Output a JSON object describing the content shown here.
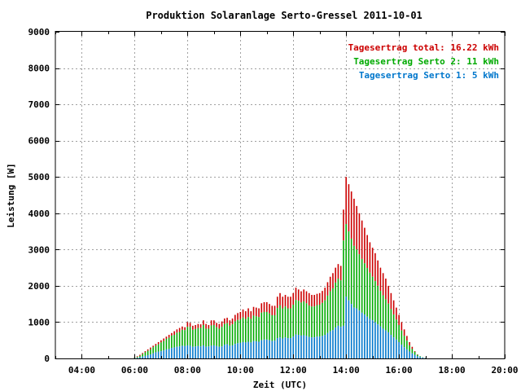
{
  "chart_data": {
    "type": "bar",
    "title": "Produktion Solaranlage Serto-Gressel 2011-10-01",
    "xlabel": "Zeit (UTC)",
    "ylabel": "Leistung [W]",
    "xlim": [
      3.0,
      20.0
    ],
    "ylim": [
      0,
      9000
    ],
    "x_ticks": [
      4,
      6,
      8,
      10,
      12,
      14,
      16,
      18,
      20
    ],
    "x_tick_labels": [
      "04:00",
      "06:00",
      "08:00",
      "10:00",
      "12:00",
      "14:00",
      "16:00",
      "18:00",
      "20:00"
    ],
    "y_ticks": [
      0,
      1000,
      2000,
      3000,
      4000,
      5000,
      6000,
      7000,
      8000,
      9000
    ],
    "y_tick_labels": [
      "0",
      "1000",
      "2000",
      "3000",
      "4000",
      "5000",
      "6000",
      "7000",
      "8000",
      "9000"
    ],
    "grid": true,
    "stacked": true,
    "legend_position": "top-right",
    "legend": [
      {
        "label": "Tagesertrag total: 16.22 kWh",
        "color": "#cc0000"
      },
      {
        "label": "Tagesertrag Serto 2: 11 kWh",
        "color": "#00aa00"
      },
      {
        "label": "Tagesertrag Serto 1: 5 kWh",
        "color": "#0077cc"
      }
    ],
    "series_colors": {
      "serto1": "#0077cc",
      "serto2": "#00aa00",
      "total": "#cc0000"
    },
    "x": [
      6.0,
      6.1,
      6.2,
      6.3,
      6.4,
      6.5,
      6.6,
      6.7,
      6.8,
      6.9,
      7.0,
      7.1,
      7.2,
      7.3,
      7.4,
      7.5,
      7.6,
      7.7,
      7.8,
      7.9,
      8.0,
      8.1,
      8.2,
      8.3,
      8.4,
      8.5,
      8.6,
      8.7,
      8.8,
      8.9,
      9.0,
      9.1,
      9.2,
      9.3,
      9.4,
      9.5,
      9.6,
      9.7,
      9.8,
      9.9,
      10.0,
      10.1,
      10.2,
      10.3,
      10.4,
      10.5,
      10.6,
      10.7,
      10.8,
      10.9,
      11.0,
      11.1,
      11.2,
      11.3,
      11.4,
      11.5,
      11.6,
      11.7,
      11.8,
      11.9,
      12.0,
      12.1,
      12.2,
      12.3,
      12.4,
      12.5,
      12.6,
      12.7,
      12.8,
      12.9,
      13.0,
      13.1,
      13.2,
      13.3,
      13.4,
      13.5,
      13.6,
      13.7,
      13.8,
      13.9,
      14.0,
      14.1,
      14.2,
      14.3,
      14.4,
      14.5,
      14.6,
      14.7,
      14.8,
      14.9,
      15.0,
      15.1,
      15.2,
      15.3,
      15.4,
      15.5,
      15.6,
      15.7,
      15.8,
      15.9,
      16.0,
      16.1,
      16.2,
      16.3,
      16.4,
      16.5,
      16.6,
      16.7,
      16.8,
      16.9,
      17.0
    ],
    "serto1": [
      10,
      15,
      30,
      50,
      70,
      90,
      110,
      140,
      170,
      190,
      200,
      220,
      250,
      260,
      290,
      300,
      320,
      330,
      350,
      340,
      360,
      350,
      320,
      330,
      340,
      330,
      360,
      320,
      330,
      350,
      360,
      340,
      320,
      330,
      380,
      390,
      350,
      360,
      400,
      420,
      430,
      450,
      440,
      460,
      440,
      480,
      470,
      460,
      500,
      520,
      520,
      500,
      480,
      490,
      560,
      580,
      550,
      580,
      560,
      560,
      600,
      660,
      650,
      630,
      640,
      620,
      590,
      580,
      580,
      600,
      600,
      620,
      650,
      700,
      750,
      780,
      850,
      900,
      870,
      900,
      1700,
      1600,
      1500,
      1400,
      1380,
      1320,
      1260,
      1210,
      1150,
      1090,
      1050,
      1000,
      940,
      880,
      820,
      770,
      720,
      650,
      580,
      520,
      450,
      380,
      310,
      250,
      190,
      140,
      100,
      60,
      40,
      20,
      10
    ],
    "serto2": [
      20,
      25,
      40,
      70,
      100,
      120,
      140,
      170,
      180,
      200,
      240,
      260,
      290,
      310,
      340,
      350,
      390,
      400,
      440,
      440,
      510,
      520,
      470,
      480,
      500,
      510,
      560,
      500,
      490,
      560,
      560,
      520,
      500,
      540,
      570,
      580,
      550,
      580,
      620,
      640,
      650,
      680,
      650,
      680,
      650,
      700,
      690,
      680,
      760,
      760,
      760,
      740,
      710,
      700,
      830,
      880,
      830,
      850,
      820,
      820,
      880,
      950,
      940,
      910,
      930,
      900,
      870,
      850,
      850,
      870,
      880,
      910,
      950,
      1030,
      1100,
      1150,
      1240,
      1300,
      1280,
      2350,
      2000,
      1900,
      1800,
      1700,
      1620,
      1550,
      1480,
      1410,
      1340,
      1270,
      1200,
      1130,
      1060,
      980,
      920,
      860,
      790,
      710,
      630,
      550,
      470,
      390,
      310,
      240,
      170,
      120,
      80,
      40,
      20,
      10,
      5
    ],
    "total": [
      40,
      60,
      100,
      150,
      200,
      250,
      300,
      350,
      400,
      450,
      500,
      550,
      600,
      650,
      700,
      750,
      800,
      840,
      880,
      860,
      1000,
      980,
      900,
      920,
      950,
      940,
      1050,
      950,
      920,
      1050,
      1050,
      980,
      950,
      1020,
      1100,
      1120,
      1050,
      1100,
      1200,
      1250,
      1280,
      1350,
      1300,
      1380,
      1300,
      1420,
      1400,
      1380,
      1520,
      1550,
      1550,
      1500,
      1450,
      1450,
      1700,
      1800,
      1700,
      1750,
      1700,
      1700,
      1800,
      1950,
      1900,
      1850,
      1900,
      1850,
      1800,
      1750,
      1750,
      1780,
      1800,
      1860,
      1950,
      2100,
      2250,
      2350,
      2500,
      2600,
      2550,
      4100,
      5000,
      4800,
      4600,
      4400,
      4200,
      4000,
      3800,
      3600,
      3400,
      3200,
      3050,
      2900,
      2700,
      2500,
      2350,
      2200,
      2000,
      1800,
      1600,
      1400,
      1200,
      1000,
      800,
      620,
      450,
      320,
      200,
      110,
      60,
      30,
      15
    ]
  }
}
